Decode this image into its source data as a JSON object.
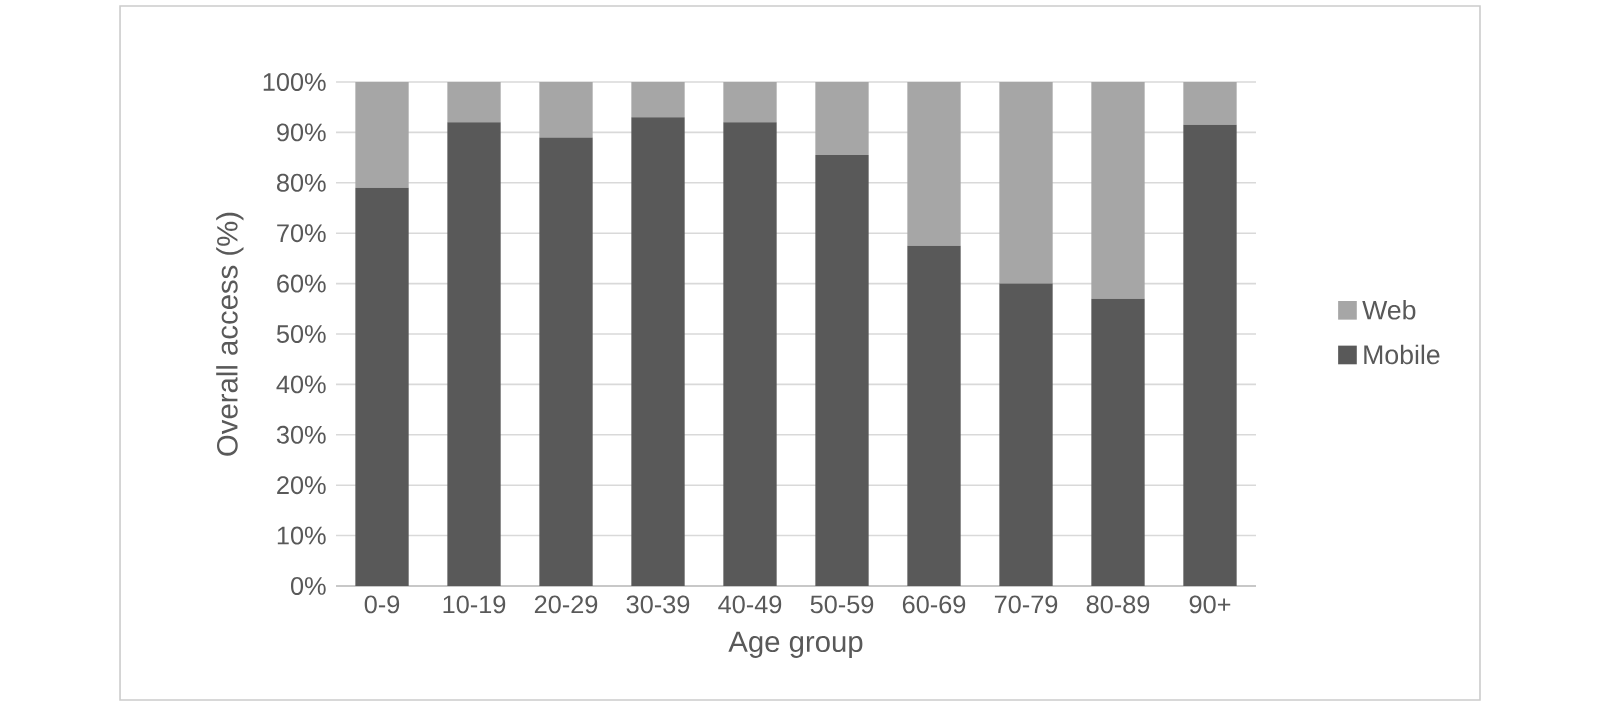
{
  "chart_data": {
    "type": "bar",
    "stacked": true,
    "xlabel": "Age group",
    "ylabel": "Overall access (%)",
    "categories": [
      "0-9",
      "10-19",
      "20-29",
      "30-39",
      "40-49",
      "50-59",
      "60-69",
      "70-79",
      "80-89",
      "90+"
    ],
    "series": [
      {
        "name": "Mobile",
        "color": "#595959",
        "values": [
          79,
          92,
          89,
          93,
          92,
          85.5,
          67.5,
          60,
          57,
          91.5
        ]
      },
      {
        "name": "Web",
        "color": "#a6a6a6",
        "values": [
          21,
          8,
          11,
          7,
          8,
          14.5,
          32.5,
          40,
          43,
          8.5
        ]
      }
    ],
    "ylim": [
      0,
      100
    ],
    "yticks": [
      {
        "value": 0,
        "label": "0%"
      },
      {
        "value": 10,
        "label": "10%"
      },
      {
        "value": 20,
        "label": "20%"
      },
      {
        "value": 30,
        "label": "30%"
      },
      {
        "value": 40,
        "label": "40%"
      },
      {
        "value": 50,
        "label": "50%"
      },
      {
        "value": 60,
        "label": "60%"
      },
      {
        "value": 70,
        "label": "70%"
      },
      {
        "value": 80,
        "label": "80%"
      },
      {
        "value": 90,
        "label": "90%"
      },
      {
        "value": 100,
        "label": "100%"
      }
    ],
    "grid": "y",
    "legend": "right"
  }
}
